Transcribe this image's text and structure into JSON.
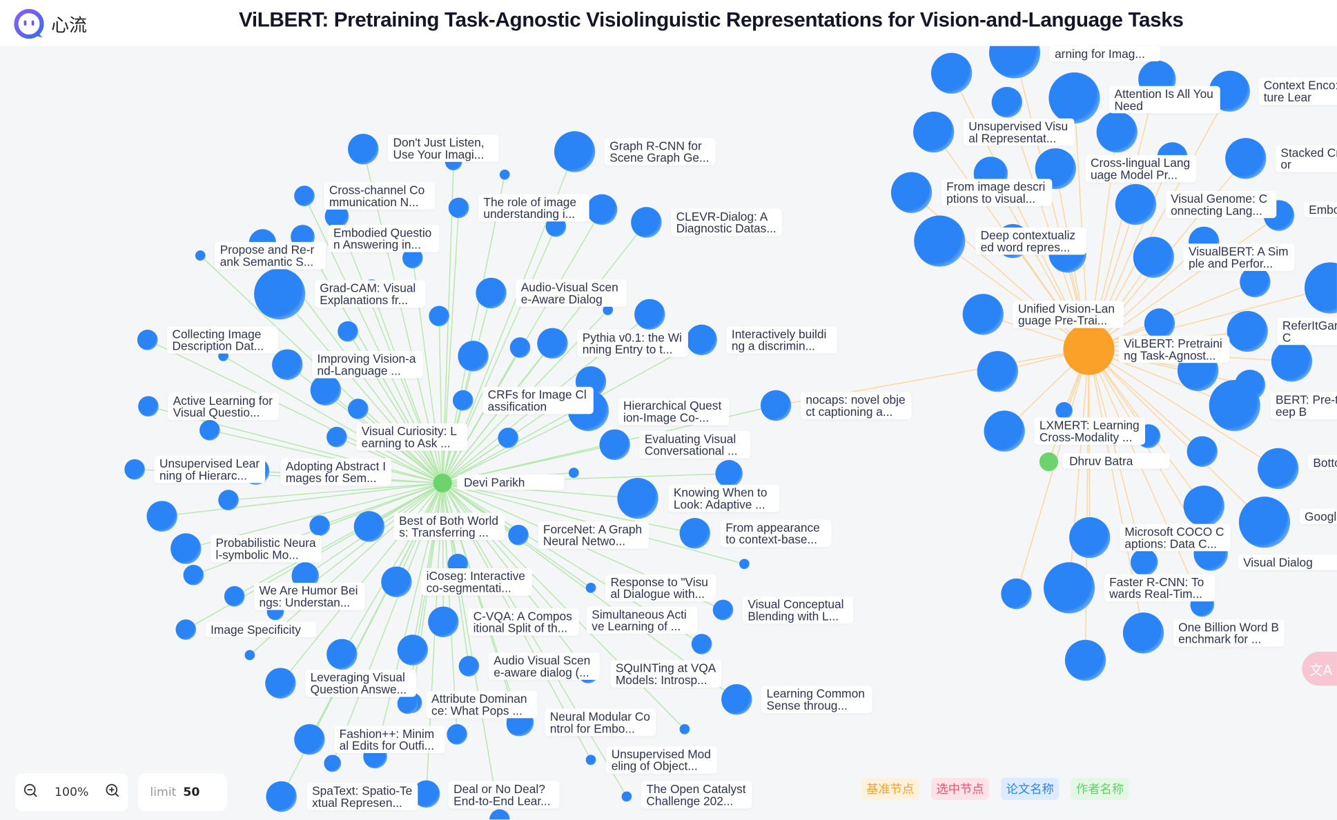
{
  "app": {
    "name": "心流",
    "logo_icon": "chat-bubble-face-icon"
  },
  "title": "ViLBERT: Pretraining Task-Agnostic Visiolinguistic Representations for Vision-and-Language Tasks",
  "colors": {
    "paper_node": "#2a84f5",
    "base_node": "#fba12a",
    "author_node": "#6dd46d",
    "author_edge": "#b6e8ae",
    "base_edge": "#fcd6a0"
  },
  "graph": {
    "authors": [
      {
        "label": "Devi Parikh"
      },
      {
        "label": "Dhruv Batra"
      }
    ],
    "base_paper": {
      "label": "ViLBERT: Pretraining Task-Agnost..."
    },
    "left_papers": [
      {
        "label": "Don't Just Listen, Use Your Imagi..."
      },
      {
        "label": "Graph R-CNN for Scene Graph Ge..."
      },
      {
        "label": "Cross-channel Communication N..."
      },
      {
        "label": "The role of image understanding i..."
      },
      {
        "label": "CLEVR-Dialog: A Diagnostic Datas..."
      },
      {
        "label": "Embodied Question Answering in..."
      },
      {
        "label": "Propose and Re-rank Semantic S..."
      },
      {
        "label": "Grad-CAM: Visual Explanations fr..."
      },
      {
        "label": "Audio-Visual Scene-Aware Dialog"
      },
      {
        "label": "Collecting Image Description Dat..."
      },
      {
        "label": "Pythia v0.1: the Winning Entry to t..."
      },
      {
        "label": "Interactively building a discrimin..."
      },
      {
        "label": "Improving Vision-and-Language ..."
      },
      {
        "label": "CRFs for Image Classification"
      },
      {
        "label": "Active Learning for Visual Questio..."
      },
      {
        "label": "Hierarchical Question-Image Co-..."
      },
      {
        "label": "nocaps: novel object captioning a..."
      },
      {
        "label": "Visual Curiosity: Learning to Ask ..."
      },
      {
        "label": "Evaluating Visual Conversational ..."
      },
      {
        "label": "Unsupervised Learning of Hierarc..."
      },
      {
        "label": "Adopting Abstract Images for Sem..."
      },
      {
        "label": "Knowing When to Look: Adaptive ..."
      },
      {
        "label": "Best of Both Worlds: Transferring ..."
      },
      {
        "label": "ForceNet: A Graph Neural Netwo..."
      },
      {
        "label": "From appearance to context-base..."
      },
      {
        "label": "Probabilistic Neural-symbolic Mo..."
      },
      {
        "label": "iCoseg: Interactive co-segmentati..."
      },
      {
        "label": "Response to \"Visual Dialogue with..."
      },
      {
        "label": "We Are Humor Beings: Understan..."
      },
      {
        "label": "Visual Conceptual Blending with L..."
      },
      {
        "label": "C-VQA: A Compositional Split of th..."
      },
      {
        "label": "Simultaneous Active Learning of ..."
      },
      {
        "label": "Image Specificity"
      },
      {
        "label": "Audio Visual Scene-aware dialog (..."
      },
      {
        "label": "SQuINTing at VQA Models: Introsp..."
      },
      {
        "label": "Leveraging Visual Question Answe..."
      },
      {
        "label": "Attribute Dominance: What Pops ..."
      },
      {
        "label": "Learning Common Sense throug..."
      },
      {
        "label": "Neural Modular Control for Embo..."
      },
      {
        "label": "Fashion++: Minimal Edits for Outfi..."
      },
      {
        "label": "Unsupervised Modeling of Object..."
      },
      {
        "label": "SpaText: Spatio-Textual Represen..."
      },
      {
        "label": "Deal or No Deal? End-to-End Lear..."
      },
      {
        "label": "The Open Catalyst Challenge 202..."
      }
    ],
    "right_papers": [
      {
        "label": "arning for Imag..."
      },
      {
        "label": "Attention Is All You Need"
      },
      {
        "label": "Context Enco: Feature Lear"
      },
      {
        "label": "Unsupervised Visual Representat..."
      },
      {
        "label": "Cross-lingual Language Model Pr..."
      },
      {
        "label": "Stacked Crention for"
      },
      {
        "label": "From image descriptions to visual..."
      },
      {
        "label": "Visual Genome: Connecting Lang..."
      },
      {
        "label": "Embo on An"
      },
      {
        "label": "Deep contextualized word repres..."
      },
      {
        "label": "VisualBERT: A Simple and Perfor..."
      },
      {
        "label": "Unified Vision-Language Pre-Trai..."
      },
      {
        "label": "ReferItGarering to C"
      },
      {
        "label": "BERT: Pre-trg of Deep B"
      },
      {
        "label": "LXMERT: Learning Cross-Modality ..."
      },
      {
        "label": "Bottoop-D"
      },
      {
        "label": "GoogleMachi"
      },
      {
        "label": "Microsoft COCO Captions: Data C..."
      },
      {
        "label": "Visual Dialog"
      },
      {
        "label": "Faster R-CNN: Towards Real-Tim..."
      },
      {
        "label": "One Billion Word Benchmark for ..."
      }
    ]
  },
  "controls": {
    "zoom_level": "100%",
    "zoom_out_icon": "zoom-out-icon",
    "zoom_in_icon": "zoom-in-icon",
    "limit_label": "limit",
    "limit_value": "50"
  },
  "legend": [
    {
      "label": "基准节点",
      "color": "#fba12a",
      "bg": "#fff1dc"
    },
    {
      "label": "选中节点",
      "color": "#f0506e",
      "bg": "#fde3e8"
    },
    {
      "label": "论文名称",
      "color": "#2a84f5",
      "bg": "#dcebff"
    },
    {
      "label": "作者名称",
      "color": "#5fcf6a",
      "bg": "#e3f7e4"
    }
  ],
  "translate_button": {
    "label": "文A",
    "icon": "translate-icon"
  }
}
